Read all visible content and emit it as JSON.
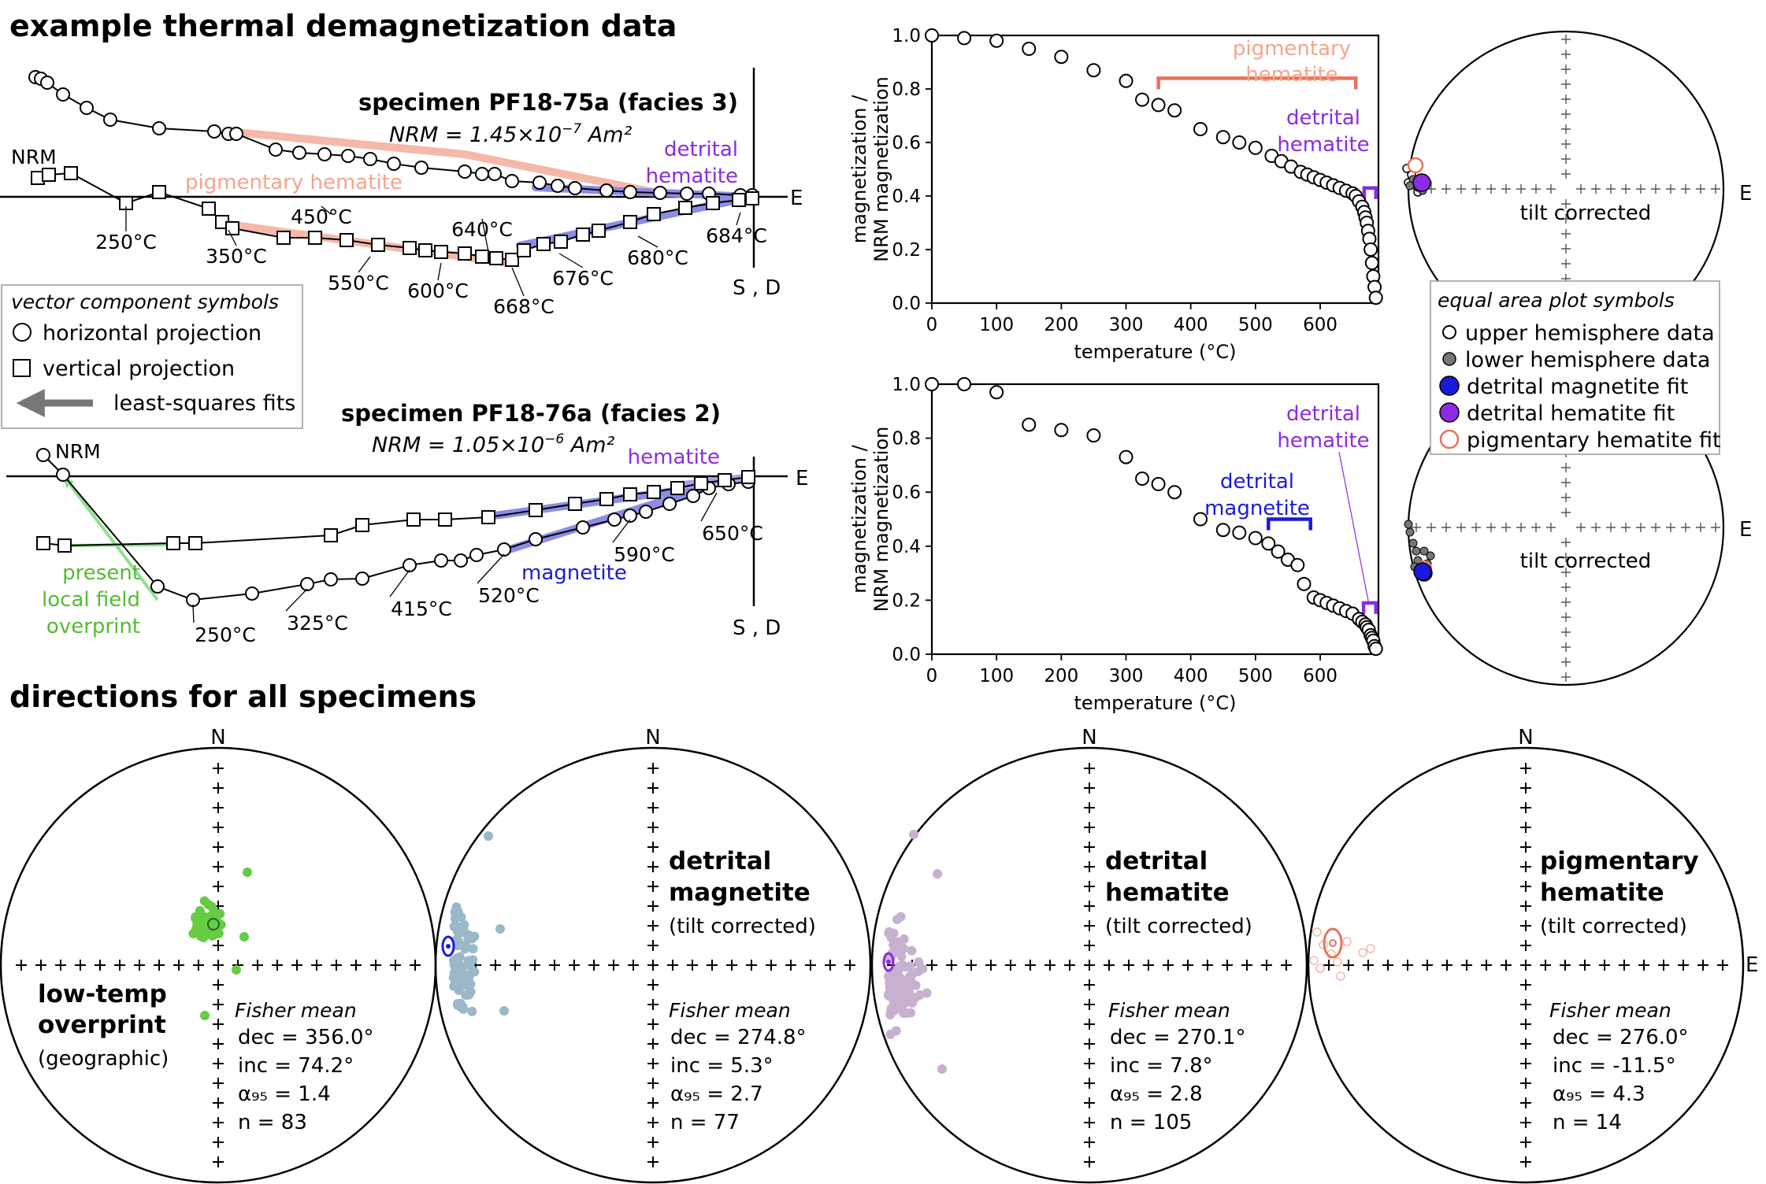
{
  "headings": {
    "top": "example thermal demagnetization data",
    "bottom": "directions for all specimens"
  },
  "zijderveld": {
    "legend_title": "vector component symbols",
    "legend_horizontal": "horizontal projection",
    "legend_vertical": "vertical projection",
    "legend_fits": "least-squares fits",
    "axis_e": "E",
    "axis_sd": "S , D",
    "nrm": "NRM",
    "s75": {
      "title": "specimen PF18-75a (facies 3)",
      "nrm_text": "NRM = 1.45×10",
      "nrm_exp": "−7",
      "nrm_unit": " Am²",
      "fit_pigmentary": "pigmentary hematite",
      "fit_detrital_1": "detrital",
      "fit_detrital_2": "hematite",
      "temp_labels": [
        "250°C",
        "350°C",
        "450°C",
        "550°C",
        "600°C",
        "640°C",
        "668°C",
        "676°C",
        "680°C",
        "684°C"
      ]
    },
    "s76": {
      "title": "specimen PF18-76a (facies 2)",
      "nrm_text": "NRM = 1.05×10",
      "nrm_exp": "−6",
      "nrm_unit": " Am²",
      "fit_hematite": "hematite",
      "fit_magnetite": "magnetite",
      "fit_overprint": [
        "present",
        "local field",
        "overprint"
      ],
      "temp_labels": [
        "250°C",
        "325°C",
        "415°C",
        "520°C",
        "590°C",
        "650°C"
      ]
    }
  },
  "demag": {
    "xlabel": "temperature (°C)",
    "ylabel_1": "magnetization /",
    "ylabel_2": "NRM magnetization",
    "xticks": [
      "0",
      "100",
      "200",
      "300",
      "400",
      "500",
      "600"
    ],
    "yticks": [
      "0.0",
      "0.2",
      "0.4",
      "0.6",
      "0.8",
      "1.0"
    ],
    "top_labels": {
      "pig1": "pigmentary",
      "pig2": "hematite",
      "det1": "detrital",
      "det2": "hematite"
    },
    "bottom_labels": {
      "dh1": "detrital",
      "dh2": "hematite",
      "dm1": "detrital",
      "dm2": "magnetite"
    }
  },
  "small_stereonets": {
    "tilt_label": "tilt corrected",
    "axis_e": "E"
  },
  "stereo_legend": {
    "title": "equal area plot symbols",
    "items": [
      "upper hemisphere data",
      "lower hemisphere data",
      "detrital magnetite fit",
      "detrital hematite fit",
      "pigmentary hematite fit"
    ]
  },
  "nets": [
    {
      "title": [
        "low-temp",
        "overprint"
      ],
      "subtitle": "(geographic)",
      "fisher": "Fisher mean",
      "dec": "dec = 356.0°",
      "inc": "inc = 74.2°",
      "a95": "α₉₅ = 1.4",
      "n": "n = 83",
      "north": "N"
    },
    {
      "title": [
        "detrital",
        "magnetite"
      ],
      "subtitle": "(tilt corrected)",
      "fisher": "Fisher mean",
      "dec": "dec = 274.8°",
      "inc": "inc = 5.3°",
      "a95": "α₉₅ = 2.7",
      "n": "n = 77",
      "north": "N"
    },
    {
      "title": [
        "detrital",
        "hematite"
      ],
      "subtitle": "(tilt corrected)",
      "fisher": "Fisher mean",
      "dec": "dec = 270.1°",
      "inc": "inc = 7.8°",
      "a95": "α₉₅ = 2.8",
      "n": "n = 105",
      "north": "N"
    },
    {
      "title": [
        "pigmentary",
        "hematite"
      ],
      "subtitle": "(tilt corrected)",
      "fisher": "Fisher mean",
      "dec": "dec = 276.0°",
      "inc": "inc = -11.5°",
      "a95": "α₉₅ = 4.3",
      "n": "n = 14",
      "north": "N",
      "east": "E"
    }
  ],
  "colors": {
    "pigmentary": "#e8735a",
    "pigmentary_light": "#f4b9a8",
    "magnetite": "#1a1adc",
    "magnetite_light": "#8c8ce6",
    "hematite": "#8b2be2",
    "overprint": "#2ea02e",
    "overprint_light": "#66cc44",
    "teal": "#9bb8c8",
    "lavender": "#c8b0d0"
  },
  "chart_data": [
    {
      "type": "scatter",
      "title": "",
      "xlabel": "temperature (°C)",
      "ylabel": "magnetization / NRM magnetization",
      "xlim": [
        0,
        690
      ],
      "ylim": [
        0,
        1.0
      ],
      "x": [
        0,
        50,
        100,
        150,
        200,
        250,
        300,
        325,
        350,
        375,
        415,
        450,
        475,
        500,
        525,
        540,
        555,
        570,
        580,
        590,
        600,
        610,
        620,
        630,
        640,
        650,
        655,
        660,
        665,
        668,
        670,
        672,
        674,
        676,
        678,
        680,
        682,
        684,
        686
      ],
      "y": [
        1.0,
        0.99,
        0.98,
        0.95,
        0.92,
        0.87,
        0.83,
        0.76,
        0.74,
        0.72,
        0.65,
        0.62,
        0.6,
        0.58,
        0.55,
        0.53,
        0.51,
        0.49,
        0.48,
        0.47,
        0.46,
        0.45,
        0.44,
        0.43,
        0.42,
        0.41,
        0.4,
        0.38,
        0.36,
        0.34,
        0.32,
        0.3,
        0.27,
        0.24,
        0.2,
        0.15,
        0.1,
        0.06,
        0.02
      ],
      "annotations": [
        "pigmentary hematite 350–655 °C",
        "detrital hematite 668–686 °C"
      ]
    },
    {
      "type": "scatter",
      "title": "",
      "xlabel": "temperature (°C)",
      "ylabel": "magnetization / NRM magnetization",
      "xlim": [
        0,
        690
      ],
      "ylim": [
        0,
        1.0
      ],
      "x": [
        0,
        50,
        100,
        150,
        200,
        250,
        300,
        325,
        350,
        375,
        415,
        450,
        475,
        500,
        520,
        535,
        550,
        565,
        575,
        590,
        600,
        610,
        620,
        630,
        640,
        650,
        660,
        665,
        670,
        672,
        675,
        678,
        680,
        682,
        684,
        686
      ],
      "y": [
        1.0,
        1.0,
        0.97,
        0.85,
        0.83,
        0.81,
        0.73,
        0.65,
        0.63,
        0.6,
        0.5,
        0.46,
        0.45,
        0.43,
        0.41,
        0.38,
        0.35,
        0.33,
        0.26,
        0.21,
        0.2,
        0.19,
        0.18,
        0.17,
        0.16,
        0.15,
        0.13,
        0.12,
        0.11,
        0.1,
        0.09,
        0.07,
        0.06,
        0.05,
        0.03,
        0.02
      ],
      "annotations": [
        "detrital magnetite 520–585 °C",
        "detrital hematite 665–686 °C"
      ]
    }
  ]
}
